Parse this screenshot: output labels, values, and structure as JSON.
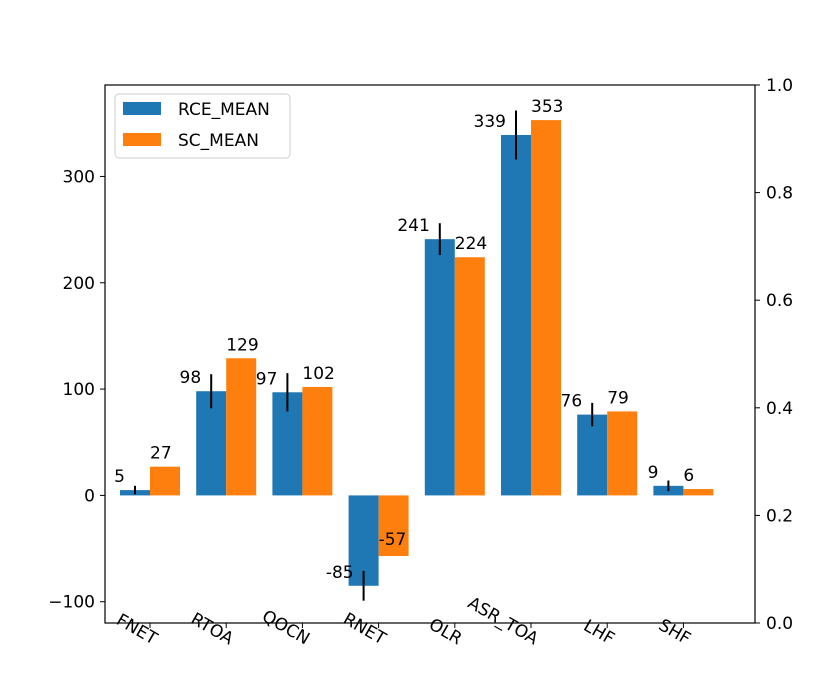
{
  "chart_data": {
    "type": "bar",
    "categories": [
      "FNET",
      "RTOA",
      "QOCN",
      "RNET",
      "OLR",
      "ASR_TOA",
      "LHF",
      "SHF"
    ],
    "series": [
      {
        "name": "RCE_MEAN",
        "color": "#1f77b4",
        "values": [
          5,
          98,
          97,
          -85,
          241,
          339,
          76,
          9
        ],
        "labels": [
          "5",
          "98",
          "97",
          "-85",
          "241",
          "339",
          "76",
          "9"
        ],
        "error": [
          4,
          16,
          18,
          14,
          15,
          23,
          11,
          5
        ]
      },
      {
        "name": "SC_MEAN",
        "color": "#ff7f0e",
        "values": [
          27,
          129,
          102,
          -57,
          224,
          353,
          79,
          6
        ],
        "labels": [
          "27",
          "129",
          "102",
          "-57",
          "224",
          "353",
          "79",
          "6"
        ]
      }
    ],
    "ylim": [
      -120,
      386
    ],
    "yticks": [
      -100,
      0,
      100,
      200,
      300
    ],
    "ytick_labels": [
      "−100",
      "0",
      "100",
      "200",
      "300"
    ],
    "y2lim": [
      0,
      1
    ],
    "y2ticks": [
      0,
      0.2,
      0.4,
      0.6,
      0.8,
      1.0
    ],
    "y2tick_labels": [
      "0.0",
      "0.2",
      "0.4",
      "0.6",
      "0.8",
      "1.0"
    ],
    "xtick_rotation_deg": 30,
    "legend_position": "upper-left",
    "title": "",
    "xlabel": "",
    "ylabel": ""
  }
}
